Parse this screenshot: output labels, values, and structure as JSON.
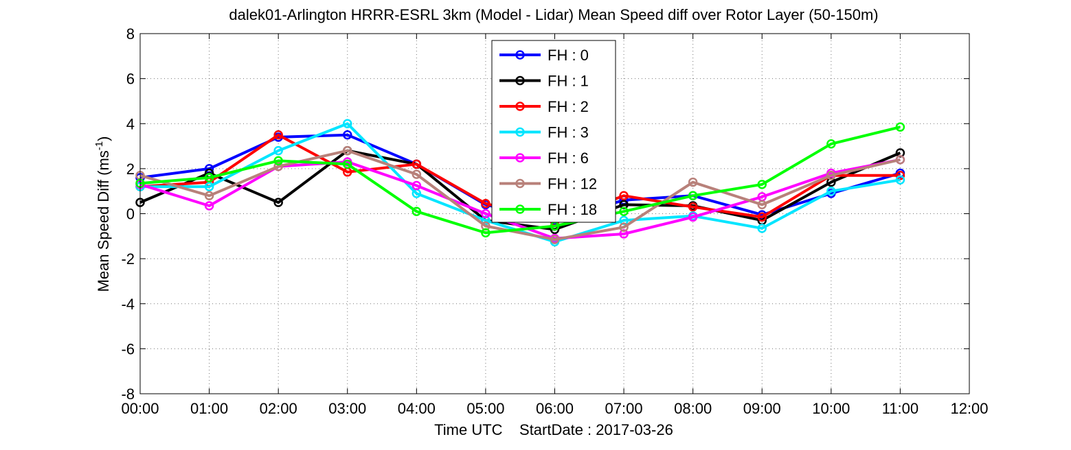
{
  "chart_data": {
    "type": "line",
    "title": "dalek01-Arlington HRRR-ESRL 3km (Model - Lidar) Mean Speed diff over Rotor Layer (50-150m)",
    "xlabel": "Time UTC    StartDate : 2017-03-26",
    "ylabel": "Mean Speed Diff (ms",
    "ylabel_sup": "-1",
    "ylabel_close": ")",
    "x_tick_labels": [
      "00:00",
      "01:00",
      "02:00",
      "03:00",
      "04:00",
      "05:00",
      "06:00",
      "07:00",
      "08:00",
      "09:00",
      "10:00",
      "11:00",
      "12:00"
    ],
    "xlim": [
      0,
      12
    ],
    "ylim": [
      -8,
      8
    ],
    "y_ticks": [
      -8,
      -6,
      -4,
      -2,
      0,
      2,
      4,
      6,
      8
    ],
    "grid": true,
    "legend_position": "top-center",
    "x": [
      0,
      1,
      2,
      3,
      4,
      5,
      6,
      7,
      8,
      9,
      10,
      11
    ],
    "series": [
      {
        "name": "FH : 0",
        "color": "#0000ff",
        "values": [
          1.6,
          2.0,
          3.4,
          3.5,
          2.2,
          0.4,
          -0.3,
          0.6,
          0.8,
          -0.05,
          0.9,
          1.8
        ]
      },
      {
        "name": "FH : 1",
        "color": "#000000",
        "values": [
          0.5,
          1.8,
          0.5,
          2.8,
          2.2,
          -0.3,
          -0.7,
          0.4,
          0.35,
          -0.3,
          1.4,
          2.7
        ]
      },
      {
        "name": "FH : 2",
        "color": "#ff0000",
        "values": [
          1.2,
          1.4,
          3.5,
          1.85,
          2.2,
          0.45,
          -0.35,
          0.8,
          0.3,
          -0.15,
          1.7,
          1.7
        ]
      },
      {
        "name": "FH : 3",
        "color": "#00e5ff",
        "values": [
          1.2,
          1.2,
          2.8,
          4.0,
          0.9,
          -0.3,
          -1.25,
          -0.3,
          -0.1,
          -0.65,
          1.0,
          1.5
        ]
      },
      {
        "name": "FH : 6",
        "color": "#ff00ff",
        "values": [
          1.3,
          0.35,
          2.1,
          2.3,
          1.25,
          0.0,
          -1.1,
          -0.9,
          -0.15,
          0.75,
          1.8,
          2.4
        ]
      },
      {
        "name": "FH : 12",
        "color": "#b8817a",
        "values": [
          1.7,
          0.8,
          2.1,
          2.8,
          1.75,
          -0.55,
          -1.15,
          -0.6,
          1.4,
          0.4,
          1.7,
          2.4
        ]
      },
      {
        "name": "FH : 18",
        "color": "#00ff00",
        "values": [
          1.35,
          1.6,
          2.35,
          2.2,
          0.1,
          -0.85,
          -0.55,
          0.1,
          0.8,
          1.3,
          3.1,
          3.85
        ]
      }
    ]
  }
}
